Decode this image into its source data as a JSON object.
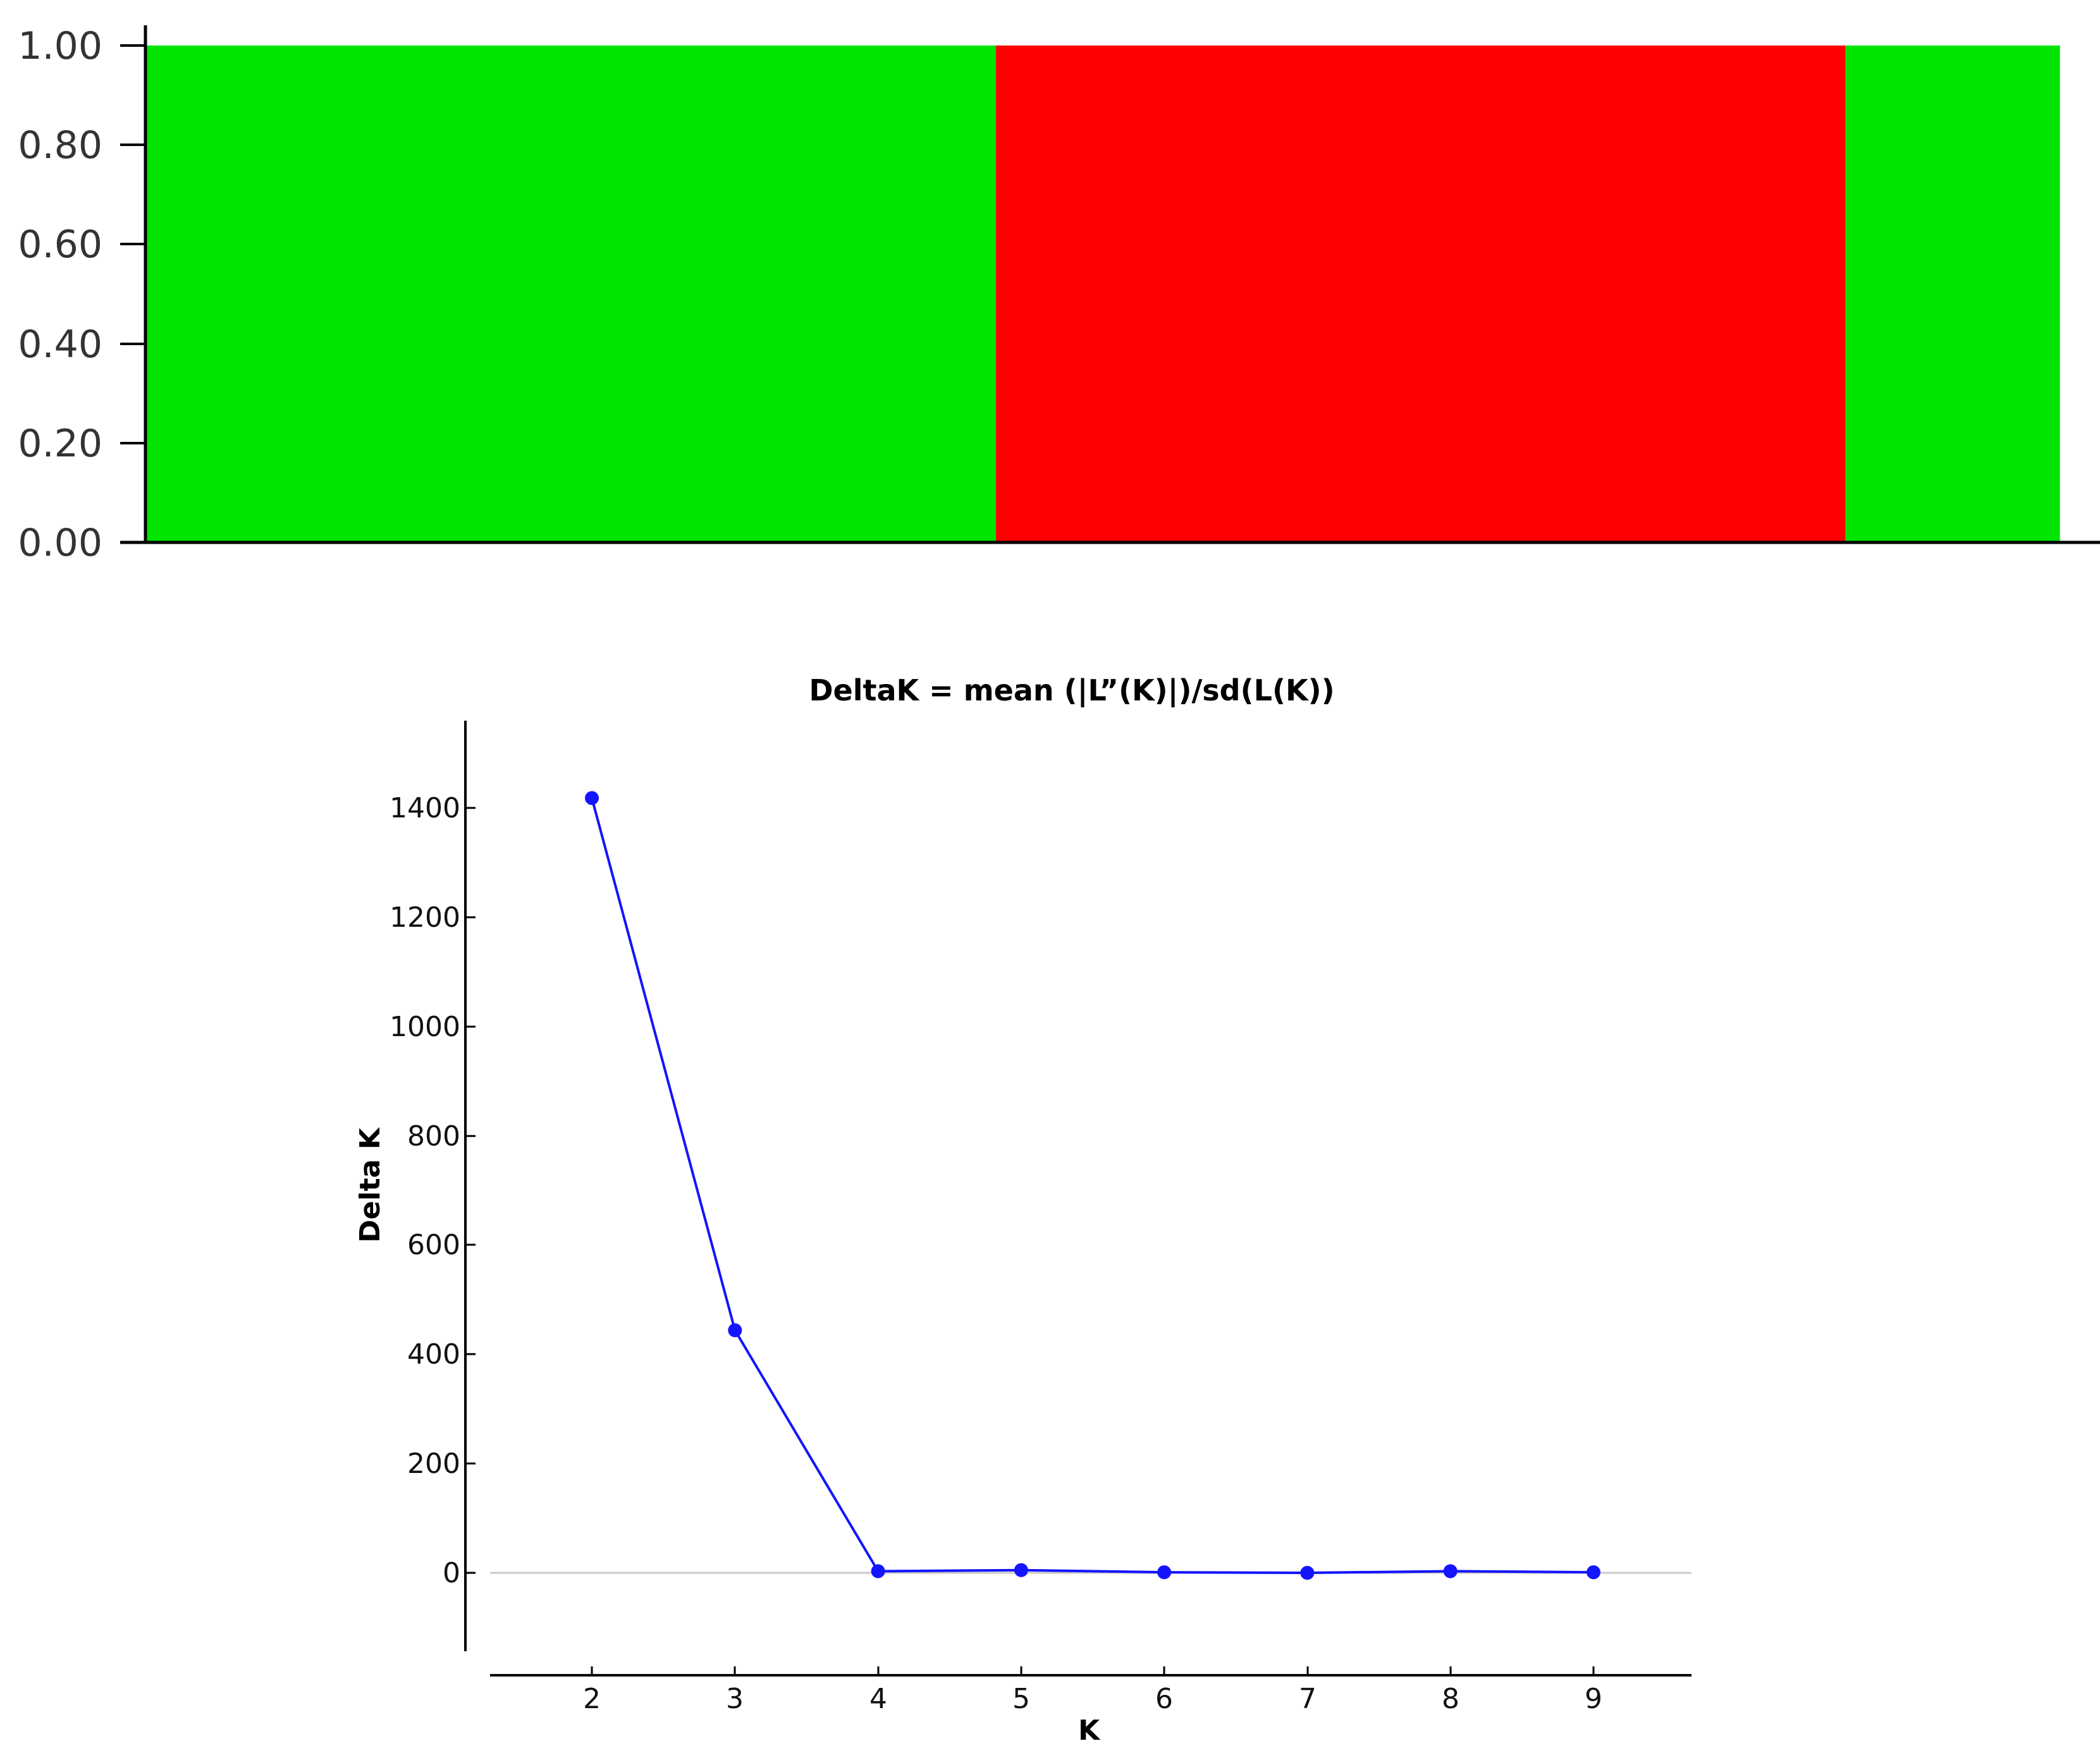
{
  "chart_data": [
    {
      "type": "bar",
      "title": "",
      "xlabel": "",
      "ylabel": "",
      "ylim": [
        0,
        1
      ],
      "yticks": [
        "0.00",
        "0.20",
        "0.40",
        "0.60",
        "0.80",
        "1.00"
      ],
      "grid": false,
      "stacked": true,
      "individual_blocks": [
        {
          "cluster_color": "#00e400",
          "share_of_individuals": 0.444,
          "membership": 1.0
        },
        {
          "cluster_color": "#ff0000",
          "share_of_individuals": 0.444,
          "membership": 1.0
        },
        {
          "cluster_color": "#00e400",
          "share_of_individuals": 0.112,
          "membership": 1.0
        }
      ],
      "colors": {
        "cluster_green": "#00e400",
        "cluster_red": "#ff0000"
      }
    },
    {
      "type": "line",
      "title": "DeltaK = mean (|L”(K)|)/sd(L(K))",
      "xlabel": "K",
      "ylabel": "Delta K",
      "x": [
        2,
        3,
        4,
        5,
        6,
        7,
        8,
        9
      ],
      "y": [
        1418,
        444,
        3,
        5,
        1,
        0,
        3,
        1
      ],
      "xticks": [
        "2",
        "3",
        "4",
        "5",
        "6",
        "7",
        "8",
        "9"
      ],
      "yticks": [
        "0",
        "200",
        "400",
        "600",
        "800",
        "1000",
        "1200",
        "1400"
      ],
      "xlim": [
        1.25,
        9.7
      ],
      "ylim": [
        -150,
        1550
      ],
      "grid": false,
      "zero_line": true,
      "colors": {
        "series": "#1414ff",
        "zero_line": "#c8c8c8"
      }
    }
  ]
}
